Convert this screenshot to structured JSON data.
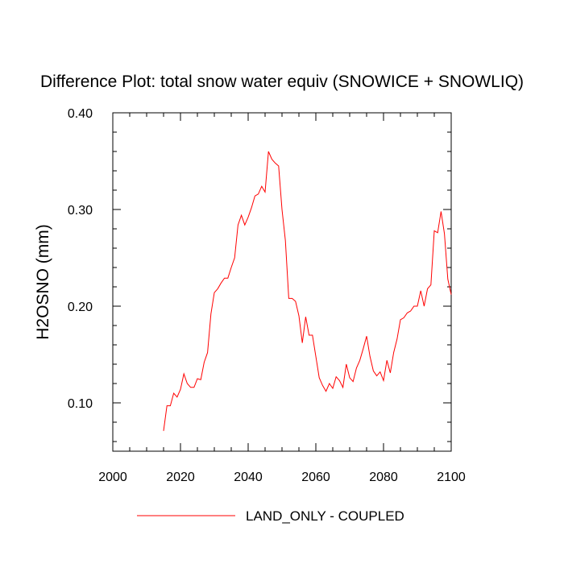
{
  "chart_data": {
    "type": "line",
    "title": "Difference Plot: total snow water equiv (SNOWICE + SNOWLIQ)",
    "xlabel": "",
    "ylabel": "H2OSNO  (mm)",
    "xlim": [
      2000,
      2100
    ],
    "ylim": [
      0.05,
      0.4
    ],
    "x_ticks": [
      2000,
      2020,
      2040,
      2060,
      2080,
      2100
    ],
    "x_tick_labels": [
      "2000",
      "2020",
      "2040",
      "2060",
      "2080",
      "2100"
    ],
    "y_ticks": [
      0.1,
      0.2,
      0.3,
      0.4
    ],
    "y_tick_labels": [
      "0.10",
      "0.20",
      "0.30",
      "0.40"
    ],
    "grid": false,
    "legend_position": "bottom",
    "series": [
      {
        "name": "LAND_ONLY - COUPLED",
        "color": "#ff0000",
        "x": [
          2015,
          2016,
          2017,
          2018,
          2019,
          2020,
          2021,
          2022,
          2023,
          2024,
          2025,
          2026,
          2027,
          2028,
          2029,
          2030,
          2031,
          2032,
          2033,
          2034,
          2035,
          2036,
          2037,
          2038,
          2039,
          2040,
          2041,
          2042,
          2043,
          2044,
          2045,
          2046,
          2047,
          2048,
          2049,
          2050,
          2051,
          2052,
          2053,
          2054,
          2055,
          2056,
          2057,
          2058,
          2059,
          2060,
          2061,
          2062,
          2063,
          2064,
          2065,
          2066,
          2067,
          2068,
          2069,
          2070,
          2071,
          2072,
          2073,
          2074,
          2075,
          2076,
          2077,
          2078,
          2079,
          2080,
          2081,
          2082,
          2083,
          2084,
          2085,
          2086,
          2087,
          2088,
          2089,
          2090,
          2091,
          2092,
          2093,
          2094,
          2095,
          2096,
          2097,
          2098,
          2099,
          2100
        ],
        "y": [
          0.071,
          0.097,
          0.097,
          0.11,
          0.106,
          0.114,
          0.13,
          0.12,
          0.116,
          0.116,
          0.125,
          0.124,
          0.142,
          0.152,
          0.192,
          0.214,
          0.218,
          0.224,
          0.229,
          0.229,
          0.24,
          0.25,
          0.284,
          0.294,
          0.284,
          0.292,
          0.302,
          0.314,
          0.316,
          0.324,
          0.318,
          0.36,
          0.352,
          0.348,
          0.345,
          0.3,
          0.268,
          0.208,
          0.208,
          0.205,
          0.19,
          0.162,
          0.189,
          0.17,
          0.17,
          0.148,
          0.126,
          0.118,
          0.112,
          0.12,
          0.115,
          0.127,
          0.123,
          0.116,
          0.14,
          0.126,
          0.122,
          0.136,
          0.144,
          0.156,
          0.169,
          0.148,
          0.133,
          0.128,
          0.132,
          0.123,
          0.144,
          0.131,
          0.152,
          0.166,
          0.186,
          0.188,
          0.193,
          0.195,
          0.2,
          0.2,
          0.216,
          0.2,
          0.218,
          0.222,
          0.278,
          0.276,
          0.298,
          0.275,
          0.228,
          0.212
        ]
      }
    ]
  }
}
